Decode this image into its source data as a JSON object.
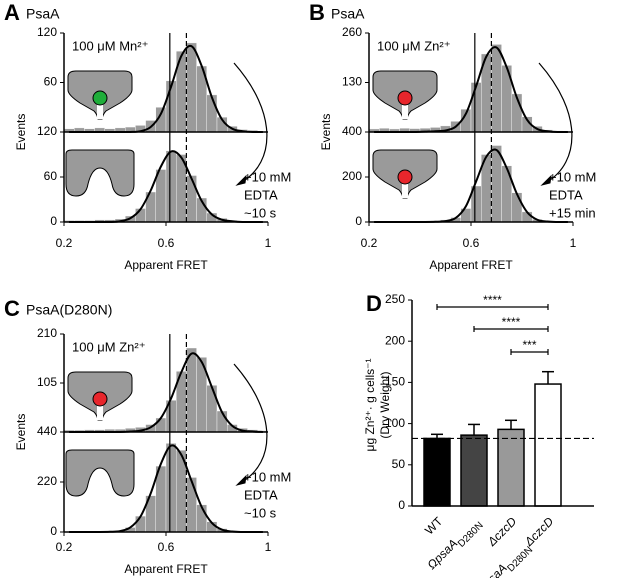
{
  "chart_data": [
    {
      "type": "histogram",
      "panel": "A",
      "title": "PsaA",
      "xlabel": "Apparent FRET",
      "ylabel": "Events",
      "xlim": [
        0.2,
        1.0
      ],
      "xticks": [
        0.2,
        0.6,
        1.0
      ],
      "color": "#9a9a9a",
      "fit_color": "#000000",
      "bins": [
        0.2,
        0.24,
        0.28,
        0.32,
        0.36,
        0.4,
        0.44,
        0.48,
        0.52,
        0.56,
        0.6,
        0.64,
        0.68,
        0.72,
        0.76,
        0.8,
        0.84,
        0.88,
        0.92,
        0.96,
        1.0
      ],
      "vlines": [
        {
          "value": 0.615,
          "style": "solid"
        },
        {
          "value": 0.68,
          "style": "dashed"
        }
      ],
      "subplots": [
        {
          "annotation": [
            "100 μM Mn²⁺"
          ],
          "ylim": [
            0,
            120
          ],
          "yticks": [
            60,
            120
          ],
          "counts": [
            4,
            5,
            4,
            5,
            4,
            5,
            6,
            8,
            14,
            30,
            62,
            98,
            108,
            80,
            45,
            18,
            7,
            3,
            2,
            1
          ],
          "fit": [
            0,
            0,
            0,
            0,
            0,
            0,
            0,
            1,
            6,
            22,
            55,
            92,
            104,
            80,
            42,
            15,
            4,
            1,
            0,
            0
          ]
        },
        {
          "annotation": [
            "+10 mM",
            "EDTA",
            "~10 s"
          ],
          "ylim": [
            0,
            120
          ],
          "yticks": [
            0,
            60,
            120
          ],
          "counts": [
            2,
            2,
            2,
            3,
            3,
            4,
            8,
            18,
            40,
            70,
            95,
            90,
            62,
            32,
            12,
            5,
            2,
            1,
            1,
            0
          ],
          "fit": [
            0,
            0,
            0,
            0,
            0,
            1,
            5,
            17,
            42,
            74,
            94,
            86,
            58,
            28,
            10,
            3,
            1,
            0,
            0,
            0
          ]
        }
      ]
    },
    {
      "type": "histogram",
      "panel": "B",
      "title": "PsaA",
      "xlabel": "Apparent FRET",
      "ylabel": "Events",
      "xlim": [
        0.2,
        1.0
      ],
      "xticks": [
        0.2,
        0.6,
        1.0
      ],
      "color": "#9a9a9a",
      "fit_color": "#000000",
      "bins": [
        0.2,
        0.24,
        0.28,
        0.32,
        0.36,
        0.4,
        0.44,
        0.48,
        0.52,
        0.56,
        0.6,
        0.64,
        0.68,
        0.72,
        0.76,
        0.8,
        0.84,
        0.88,
        0.92,
        0.96,
        1.0
      ],
      "vlines": [
        {
          "value": 0.615,
          "style": "solid"
        },
        {
          "value": 0.68,
          "style": "dashed"
        }
      ],
      "subplots": [
        {
          "annotation": [
            "100 μM Zn²⁺"
          ],
          "ylim": [
            0,
            260
          ],
          "yticks": [
            130,
            260
          ],
          "counts": [
            8,
            10,
            8,
            10,
            9,
            10,
            12,
            16,
            28,
            60,
            130,
            205,
            230,
            175,
            100,
            40,
            15,
            6,
            3,
            2
          ],
          "fit": [
            0,
            0,
            0,
            0,
            0,
            1,
            2,
            4,
            14,
            48,
            120,
            198,
            222,
            170,
            90,
            32,
            8,
            2,
            0,
            0
          ]
        },
        {
          "annotation": [
            "+10 mM",
            "EDTA",
            "+15 min"
          ],
          "ylim": [
            0,
            400
          ],
          "yticks": [
            0,
            200,
            400
          ],
          "counts": [
            3,
            3,
            3,
            3,
            4,
            5,
            6,
            10,
            20,
            60,
            160,
            300,
            340,
            250,
            130,
            45,
            12,
            5,
            2,
            1
          ],
          "fit": [
            0,
            0,
            0,
            0,
            0,
            0,
            1,
            4,
            18,
            70,
            180,
            290,
            320,
            240,
            125,
            44,
            10,
            2,
            0,
            0
          ]
        }
      ]
    },
    {
      "type": "histogram",
      "panel": "C",
      "title": "PsaA(D280N)",
      "xlabel": "Apparent FRET",
      "ylabel": "Events",
      "xlim": [
        0.2,
        1.0
      ],
      "xticks": [
        0.2,
        0.6,
        1.0
      ],
      "color": "#9a9a9a",
      "fit_color": "#000000",
      "bins": [
        0.2,
        0.24,
        0.28,
        0.32,
        0.36,
        0.4,
        0.44,
        0.48,
        0.52,
        0.56,
        0.6,
        0.64,
        0.68,
        0.72,
        0.76,
        0.8,
        0.84,
        0.88,
        0.92,
        0.96,
        1.0
      ],
      "vlines": [
        {
          "value": 0.615,
          "style": "solid"
        },
        {
          "value": 0.68,
          "style": "dashed"
        }
      ],
      "subplots": [
        {
          "annotation": [
            "100 μM Zn²⁺"
          ],
          "ylim": [
            0,
            210
          ],
          "yticks": [
            105,
            210
          ],
          "counts": [
            4,
            4,
            5,
            5,
            6,
            6,
            8,
            10,
            16,
            30,
            68,
            130,
            180,
            160,
            100,
            45,
            16,
            8,
            5,
            3
          ],
          "fit": [
            0,
            0,
            0,
            0,
            0,
            0,
            1,
            3,
            10,
            30,
            72,
            128,
            168,
            150,
            96,
            42,
            13,
            3,
            1,
            0
          ]
        },
        {
          "annotation": [
            "+10 mM",
            "EDTA",
            "~10 s"
          ],
          "ylim": [
            0,
            440
          ],
          "yticks": [
            0,
            220,
            440
          ],
          "counts": [
            2,
            2,
            2,
            3,
            4,
            6,
            20,
            70,
            160,
            290,
            390,
            360,
            240,
            120,
            45,
            15,
            5,
            2,
            1,
            1
          ],
          "fit": [
            0,
            0,
            0,
            0,
            1,
            4,
            20,
            68,
            170,
            300,
            380,
            340,
            225,
            110,
            40,
            10,
            2,
            0,
            0,
            0
          ]
        }
      ]
    },
    {
      "type": "bar",
      "panel": "D",
      "ylabel": [
        "μg Zn²⁺· g cells⁻¹",
        "(Dry Weight)"
      ],
      "categories": [
        [
          "WT"
        ],
        [
          "ΩpsaA",
          "D280N"
        ],
        [
          "ΔczcD"
        ],
        [
          "ΩpsaA",
          "D280N",
          "ΔczcD"
        ]
      ],
      "values": [
        82,
        86,
        93,
        148
      ],
      "errors": [
        5,
        13,
        11,
        15
      ],
      "colors": [
        "#000000",
        "#444444",
        "#999999",
        "#ffffff"
      ],
      "ylim": [
        0,
        250
      ],
      "yticks": [
        0,
        50,
        100,
        150,
        200,
        250
      ],
      "reference_line": 82,
      "annotations": [
        "****",
        "****",
        "***"
      ]
    }
  ]
}
